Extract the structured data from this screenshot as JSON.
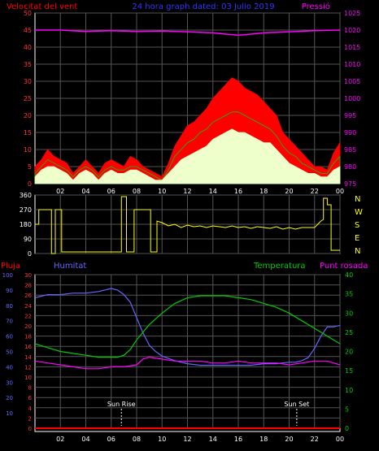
{
  "header": {
    "left_title": "Velocitat del vent",
    "center_title": "24 hora graph dated: 03 Julio 2019",
    "right_title": "Pressió"
  },
  "colors": {
    "red": "#ff0000",
    "green": "#00cc00",
    "cream": "#eeffcc",
    "magenta": "#ff00ff",
    "blue": "#6666ff",
    "yellow": "#ffff00",
    "white": "#ffffff",
    "grid": "#555555"
  },
  "wind_chart": {
    "type": "area",
    "y_left_ticks": [
      "0",
      "5",
      "10",
      "15",
      "20",
      "25",
      "30",
      "35",
      "40",
      "45",
      "50"
    ],
    "y_right_ticks": [
      "975",
      "980",
      "985",
      "990",
      "995",
      "1000",
      "1005",
      "1010",
      "1015",
      "1020",
      "1025"
    ],
    "x_ticks": [
      "02",
      "04",
      "06",
      "08",
      "10",
      "12",
      "14",
      "16",
      "18",
      "20",
      "22",
      "00"
    ],
    "ylim_left": [
      0,
      50
    ],
    "ylim_right": [
      975,
      1025
    ],
    "xlim": [
      0,
      24
    ],
    "series": [
      {
        "name": "gust",
        "color": "#ff0000",
        "x": [
          0,
          0.5,
          1,
          1.5,
          2,
          2.5,
          3,
          3.5,
          4,
          4.5,
          5,
          5.5,
          6,
          6.5,
          7,
          7.5,
          8,
          8.5,
          9,
          9.5,
          10,
          10.5,
          11,
          11.5,
          12,
          12.5,
          13,
          13.5,
          14,
          14.5,
          15,
          15.5,
          16,
          16.5,
          17,
          17.5,
          18,
          18.5,
          19,
          19.5,
          20,
          20.5,
          21,
          21.5,
          22,
          22.5,
          23,
          23.5,
          24
        ],
        "values": [
          5,
          7,
          10,
          8,
          7,
          6,
          3,
          5,
          7,
          5,
          3,
          6,
          7,
          6,
          5,
          8,
          7,
          5,
          4,
          3,
          2,
          6,
          11,
          14,
          17,
          18,
          20,
          22,
          25,
          27,
          29,
          31,
          30,
          28,
          27,
          26,
          24,
          22,
          20,
          15,
          13,
          11,
          9,
          7,
          5,
          5,
          4,
          9,
          12
        ]
      },
      {
        "name": "mean",
        "color": "#00cc00",
        "x": [
          0,
          0.5,
          1,
          1.5,
          2,
          2.5,
          3,
          3.5,
          4,
          4.5,
          5,
          5.5,
          6,
          6.5,
          7,
          7.5,
          8,
          8.5,
          9,
          9.5,
          10,
          10.5,
          11,
          11.5,
          12,
          12.5,
          13,
          13.5,
          14,
          14.5,
          15,
          15.5,
          16,
          16.5,
          17,
          17.5,
          18,
          18.5,
          19,
          19.5,
          20,
          20.5,
          21,
          21.5,
          22,
          22.5,
          23,
          23.5,
          24
        ],
        "values": [
          3,
          5,
          7,
          6,
          5,
          4,
          2,
          4,
          5,
          4,
          2,
          4,
          5,
          4,
          4,
          5,
          5,
          4,
          3,
          2,
          1,
          4,
          8,
          10,
          12,
          13,
          15,
          16,
          18,
          19,
          20,
          21,
          21,
          20,
          19,
          18,
          17,
          16,
          14,
          11,
          9,
          8,
          6,
          5,
          4,
          3,
          3,
          6,
          8
        ]
      },
      {
        "name": "speed",
        "color": "#eeffcc",
        "x": [
          0,
          0.5,
          1,
          1.5,
          2,
          2.5,
          3,
          3.5,
          4,
          4.5,
          5,
          5.5,
          6,
          6.5,
          7,
          7.5,
          8,
          8.5,
          9,
          9.5,
          10,
          10.5,
          11,
          11.5,
          12,
          12.5,
          13,
          13.5,
          14,
          14.5,
          15,
          15.5,
          16,
          16.5,
          17,
          17.5,
          18,
          18.5,
          19,
          19.5,
          20,
          20.5,
          21,
          21.5,
          22,
          22.5,
          23,
          23.5,
          24
        ],
        "values": [
          2,
          4,
          5,
          5,
          4,
          3,
          1,
          3,
          4,
          3,
          1,
          3,
          4,
          3,
          3,
          4,
          4,
          3,
          2,
          1,
          1,
          3,
          5,
          7,
          8,
          9,
          10,
          11,
          13,
          14,
          15,
          16,
          15,
          15,
          14,
          13,
          12,
          12,
          10,
          8,
          6,
          5,
          4,
          3,
          3,
          2,
          2,
          4,
          5
        ]
      },
      {
        "name": "pressure",
        "color": "#ff00ff",
        "axis": "right",
        "x": [
          0,
          2,
          4,
          6,
          8,
          10,
          12,
          14,
          15,
          16,
          17,
          18,
          20,
          22,
          24
        ],
        "values": [
          1020,
          1020,
          1019.6,
          1019.8,
          1019.6,
          1019.7,
          1019.5,
          1019.2,
          1018.8,
          1018.5,
          1018.8,
          1019.2,
          1019.5,
          1019.8,
          1020
        ]
      }
    ]
  },
  "direction_chart": {
    "type": "line",
    "y_left_ticks": [
      "0",
      "90",
      "180",
      "270",
      "360"
    ],
    "y_right_labels": [
      "N",
      "W",
      "S",
      "E",
      "N"
    ],
    "ylim": [
      0,
      360
    ],
    "xlim": [
      0,
      24
    ],
    "series": [
      {
        "name": "direction",
        "color": "#ffff00",
        "x": [
          0,
          0.3,
          0.3,
          1.3,
          1.3,
          1.6,
          1.6,
          2.1,
          2.1,
          6.8,
          6.8,
          7.2,
          7.2,
          7.8,
          7.8,
          9.1,
          9.1,
          9.6,
          9.6,
          10,
          10.5,
          11,
          11.5,
          12,
          12.5,
          13,
          13.5,
          14,
          14.5,
          15,
          15.5,
          16,
          16.5,
          17,
          17.5,
          18,
          18.5,
          19,
          19.5,
          20,
          20.5,
          21,
          21.5,
          22,
          22.5,
          22.7,
          22.7,
          23,
          23,
          23.3,
          23.3,
          24
        ],
        "values": [
          180,
          180,
          270,
          270,
          0,
          0,
          270,
          270,
          10,
          10,
          350,
          350,
          10,
          10,
          270,
          270,
          10,
          10,
          200,
          190,
          170,
          180,
          160,
          175,
          165,
          170,
          160,
          170,
          165,
          160,
          170,
          160,
          165,
          155,
          165,
          160,
          155,
          165,
          150,
          160,
          150,
          160,
          160,
          160,
          200,
          210,
          340,
          340,
          300,
          300,
          20,
          20
        ]
      }
    ]
  },
  "climate_chart": {
    "type": "line",
    "left_header": "Pluja",
    "humidity_header": "Humitat",
    "temp_header": "Temperatura",
    "dew_header": "Punt rosada",
    "rain_ticks": [
      "0",
      "2",
      "4",
      "6",
      "8",
      "10",
      "12",
      "14",
      "16",
      "18",
      "20",
      "22",
      "24",
      "26",
      "28",
      "30"
    ],
    "humidity_ticks": [
      "10",
      "20",
      "30",
      "40",
      "50",
      "60",
      "70",
      "80",
      "90",
      "100"
    ],
    "temp_ticks": [
      "0",
      "5",
      "10",
      "15",
      "20",
      "25",
      "30",
      "35",
      "40"
    ],
    "ylim_humidity": [
      0,
      100
    ],
    "ylim_temp": [
      0,
      40
    ],
    "ylim_rain": [
      0,
      30
    ],
    "xlim": [
      0,
      24
    ],
    "annotations": [
      {
        "label": "Sun Rise",
        "x": 6.8
      },
      {
        "label": "Sun Set",
        "x": 20.6
      }
    ],
    "series": [
      {
        "name": "humidity",
        "color": "#6666ff",
        "x": [
          0,
          0.5,
          1,
          2,
          3,
          4,
          5,
          5.5,
          6,
          6.5,
          7,
          7.5,
          8,
          8.5,
          9,
          9.5,
          10,
          11,
          12,
          13,
          14,
          15,
          16,
          17,
          18,
          19,
          20,
          20.5,
          21,
          21.5,
          22,
          22.5,
          23,
          23.5,
          24
        ],
        "values": [
          85,
          86,
          87,
          87,
          88,
          88,
          89,
          90,
          91,
          90,
          87,
          82,
          72,
          62,
          54,
          50,
          47,
          44,
          42,
          41,
          41,
          41,
          41,
          41,
          42,
          42,
          43,
          43,
          44,
          46,
          52,
          60,
          66,
          66,
          67
        ]
      },
      {
        "name": "temperature",
        "color": "#00cc00",
        "x": [
          0,
          1,
          2,
          3,
          4,
          5,
          6,
          6.5,
          7,
          7.5,
          8,
          9,
          10,
          11,
          12,
          13,
          14,
          15,
          16,
          17,
          18,
          19,
          20,
          21,
          22,
          23,
          24
        ],
        "values": [
          22,
          21,
          20,
          19.5,
          19,
          18.5,
          18.5,
          18.5,
          19,
          20.5,
          23,
          27,
          30,
          32.5,
          34,
          34.5,
          34.5,
          34.5,
          34,
          33.5,
          32.5,
          31.5,
          30,
          28,
          26,
          24,
          22
        ]
      },
      {
        "name": "dew_point",
        "color": "#ff00ff",
        "x": [
          0,
          1,
          2,
          3,
          4,
          5,
          6,
          7,
          8,
          8.5,
          9,
          10,
          11,
          12,
          13,
          14,
          15,
          16,
          17,
          18,
          19,
          20,
          21,
          22,
          23,
          24
        ],
        "values": [
          17.5,
          17,
          16.5,
          16,
          15.5,
          15.5,
          16,
          16,
          16.5,
          18,
          18.5,
          18,
          17.5,
          17.5,
          17.5,
          17,
          17,
          17.5,
          17,
          17,
          17,
          16.5,
          17,
          17.5,
          17.5,
          16.5
        ]
      },
      {
        "name": "rain",
        "color": "#ff0000",
        "axis": "rain",
        "x": [
          0,
          24
        ],
        "values": [
          0,
          0
        ]
      }
    ]
  }
}
